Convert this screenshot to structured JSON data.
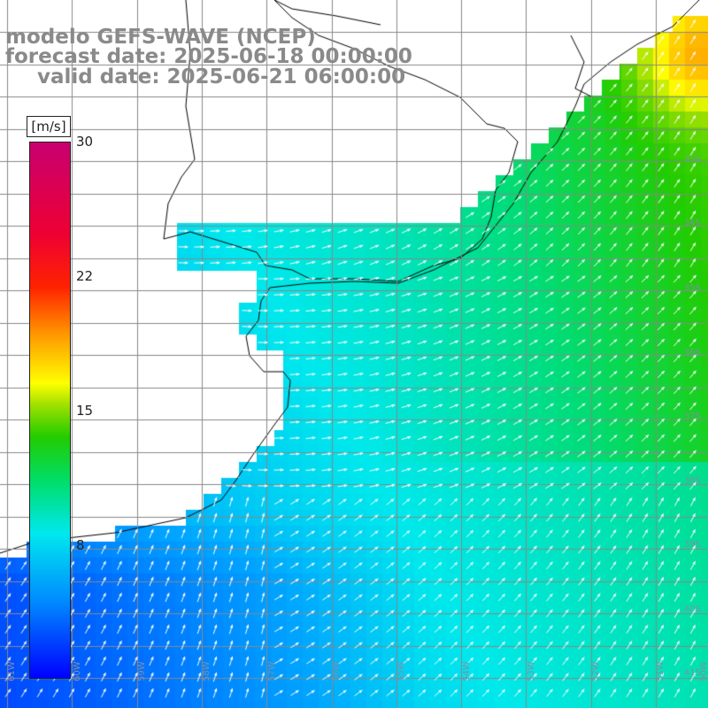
{
  "header": {
    "model": "modelo GEFS-WAVE (NCEP)",
    "forecast": "forecast date: 2025-06-18 00:00:00",
    "valid": "valid date: 2025-06-21 06:00:00"
  },
  "colorbar": {
    "unit": "[m/s]",
    "ticks": [
      "30",
      "22",
      "15",
      "8"
    ],
    "stops": [
      "#0000ff",
      "#0088ff",
      "#00e8ee",
      "#00dd66",
      "#22cc00",
      "#a0e000",
      "#ffff00",
      "#ff9900",
      "#ff2200",
      "#ee0033",
      "#c80070"
    ]
  },
  "axes": {
    "lon_labels": [
      "61W",
      "60W",
      "59W",
      "58W",
      "57W",
      "56W",
      "55W",
      "54W",
      "53W",
      "52W",
      "51W",
      "50W"
    ],
    "lat_labels": [
      "33S",
      "34S",
      "35S",
      "36S",
      "37S",
      "38S",
      "39S",
      "40S",
      "41S"
    ]
  },
  "colors": {
    "land": "#ffffff",
    "coastline": "#000000",
    "grid": "#888888",
    "arrows": "#ffffff"
  },
  "field": {
    "quantity": "wind speed",
    "units": "m/s",
    "arrow_direction": "mostly eastward, turning northeastward offshore"
  }
}
